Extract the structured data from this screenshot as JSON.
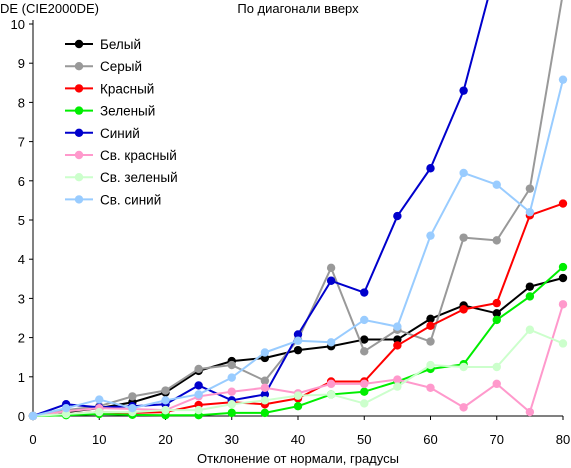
{
  "chart_data": {
    "type": "line",
    "title": "По диагонали вверх",
    "ylabel": "DE (CIE2000DE)",
    "xlabel": "Отклонение от нормали, градусы",
    "xlim": [
      0,
      80
    ],
    "ylim": [
      0,
      10
    ],
    "xticks": [
      0,
      10,
      20,
      30,
      40,
      50,
      60,
      70,
      80
    ],
    "yticks": [
      0,
      1,
      2,
      3,
      4,
      5,
      6,
      7,
      8,
      9,
      10
    ],
    "grid": false,
    "legend_position": "top-left",
    "x": [
      0,
      5,
      10,
      15,
      20,
      25,
      30,
      35,
      40,
      45,
      50,
      55,
      60,
      65,
      70,
      75,
      80
    ],
    "series": [
      {
        "name": "Белый",
        "color": "#000000",
        "values": [
          0,
          0.1,
          0.2,
          0.35,
          0.6,
          1.15,
          1.4,
          1.48,
          1.68,
          1.78,
          1.95,
          1.95,
          2.48,
          2.82,
          2.62,
          3.3,
          3.52
        ]
      },
      {
        "name": "Серый",
        "color": "#999999",
        "values": [
          0,
          0.15,
          0.25,
          0.5,
          0.65,
          1.2,
          1.3,
          0.9,
          1.95,
          3.78,
          1.65,
          2.2,
          1.9,
          4.55,
          4.48,
          5.8,
          10.8
        ]
      },
      {
        "name": "Красный",
        "color": "#ff0000",
        "values": [
          0,
          0.05,
          0.1,
          0.08,
          0.1,
          0.28,
          0.35,
          0.3,
          0.45,
          0.88,
          0.88,
          1.8,
          2.3,
          2.72,
          2.88,
          5.12,
          5.42
        ]
      },
      {
        "name": "Зеленый",
        "color": "#00ee00",
        "values": [
          0,
          0.02,
          0.05,
          0.03,
          0.02,
          0.02,
          0.08,
          0.08,
          0.25,
          0.55,
          0.62,
          0.88,
          1.2,
          1.32,
          2.45,
          3.05,
          3.8
        ]
      },
      {
        "name": "Синий",
        "color": "#0000cc",
        "values": [
          0,
          0.3,
          0.22,
          0.25,
          0.3,
          0.78,
          0.4,
          0.55,
          2.08,
          3.45,
          3.15,
          5.1,
          6.32,
          8.3,
          11.5,
          null,
          null
        ]
      },
      {
        "name": "Св. красный",
        "color": "#ff99cc",
        "values": [
          0,
          0.12,
          0.2,
          0.18,
          0.15,
          0.5,
          0.62,
          0.72,
          0.58,
          0.82,
          0.82,
          0.93,
          0.72,
          0.22,
          0.82,
          0.1,
          2.85
        ]
      },
      {
        "name": "Св. зеленый",
        "color": "#ccffcc",
        "values": [
          0,
          0.05,
          0.1,
          0.1,
          0.15,
          0.15,
          0.3,
          0.4,
          0.52,
          0.55,
          0.32,
          0.75,
          1.3,
          1.25,
          1.25,
          2.2,
          1.85
        ]
      },
      {
        "name": "Св. синий",
        "color": "#99ccff",
        "values": [
          0,
          0.2,
          0.42,
          0.2,
          0.4,
          0.55,
          0.98,
          1.62,
          1.92,
          1.88,
          2.45,
          2.28,
          4.6,
          6.2,
          5.9,
          5.2,
          8.58
        ]
      }
    ]
  }
}
